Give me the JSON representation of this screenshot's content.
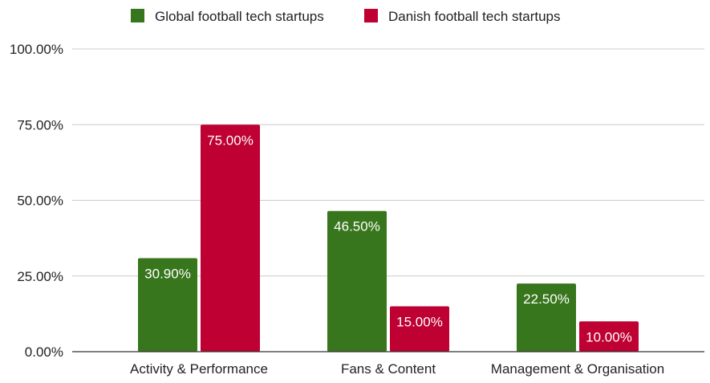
{
  "chart_data": {
    "type": "bar",
    "categories": [
      "Activity & Performance",
      "Fans & Content",
      "Management & Organisation"
    ],
    "series": [
      {
        "name": "Global football tech startups",
        "color": "#38761d",
        "values": [
          30.9,
          46.5,
          22.5
        ],
        "labels": [
          "30.90%",
          "46.50%",
          "22.50%"
        ]
      },
      {
        "name": "Danish football tech startups",
        "color": "#be0032",
        "values": [
          75.0,
          15.0,
          10.0
        ],
        "labels": [
          "75.00%",
          "15.00%",
          "10.00%"
        ]
      }
    ],
    "ylim": [
      0,
      100
    ],
    "yticks": [
      0,
      25,
      50,
      75,
      100
    ],
    "ytick_labels": [
      "0.00%",
      "25.00%",
      "50.00%",
      "75.00%",
      "100.00%"
    ],
    "grid": true,
    "legend_position": "top-center",
    "title": "",
    "xlabel": "",
    "ylabel": ""
  }
}
